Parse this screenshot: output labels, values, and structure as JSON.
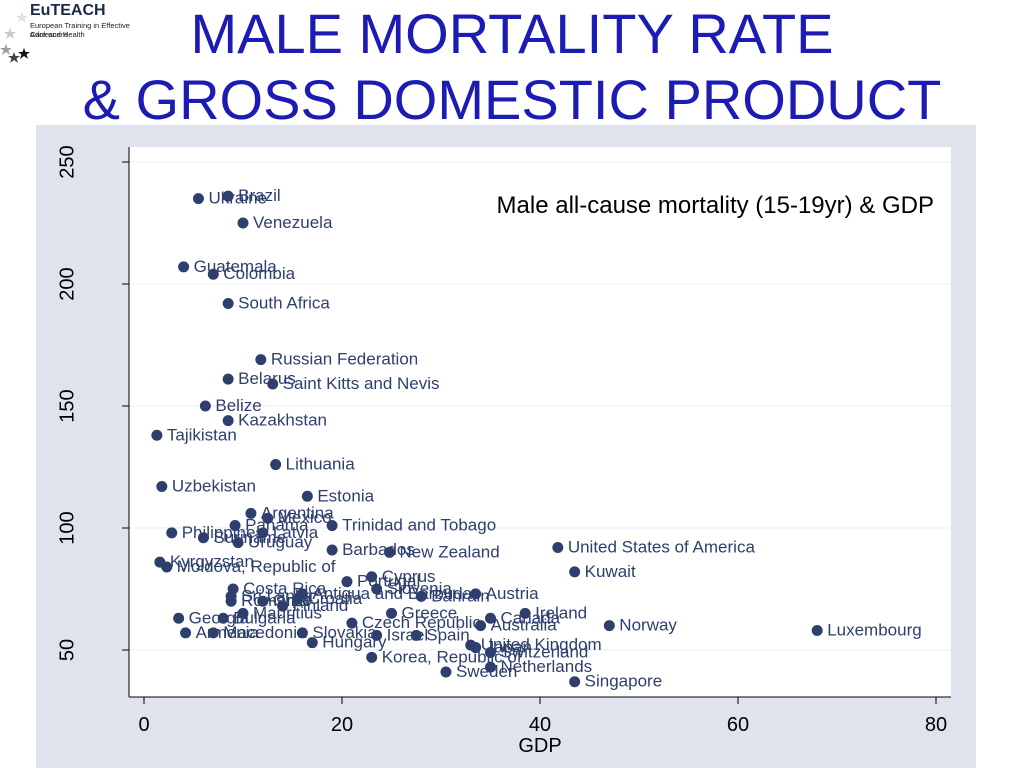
{
  "header": {
    "logo_name": "EuTEACH",
    "logo_line1": "European Training in Effective Adolescent",
    "logo_line2": "Care and Health",
    "title_line1": "MALE MORTALITY RATE",
    "title_line2": "& GROSS DOMESTIC PRODUCT"
  },
  "colors": {
    "title": "#1c1cb4",
    "marker": "#2e3f6e",
    "label": "#2e3f6e",
    "panel": "#dfe3ee",
    "plot": "#ffffff"
  },
  "chart_data": {
    "type": "scatter",
    "title": "Male all-cause mortality (15-19yr) & GDP",
    "xlabel": "GDP",
    "ylabel": "",
    "xlim": [
      0,
      80
    ],
    "ylim": [
      30,
      255
    ],
    "xticks": [
      0,
      20,
      40,
      60,
      80
    ],
    "yticks": [
      50,
      100,
      150,
      200,
      250
    ],
    "points": [
      {
        "label": "Brazil",
        "x": 8.5,
        "y": 236
      },
      {
        "label": "Ukraine",
        "x": 5.5,
        "y": 235
      },
      {
        "label": "Venezuela",
        "x": 10,
        "y": 225
      },
      {
        "label": "Guatemala",
        "x": 4,
        "y": 207
      },
      {
        "label": "Colombia",
        "x": 7,
        "y": 204
      },
      {
        "label": "South Africa",
        "x": 8.5,
        "y": 192
      },
      {
        "label": "Russian Federation",
        "x": 11.8,
        "y": 169
      },
      {
        "label": "Belarus",
        "x": 8.5,
        "y": 161
      },
      {
        "label": "Saint Kitts and Nevis",
        "x": 13,
        "y": 159
      },
      {
        "label": "Belize",
        "x": 6.2,
        "y": 150
      },
      {
        "label": "Kazakhstan",
        "x": 8.5,
        "y": 144
      },
      {
        "label": "Tajikistan",
        "x": 1.3,
        "y": 138
      },
      {
        "label": "Lithuania",
        "x": 13.3,
        "y": 126
      },
      {
        "label": "Uzbekistan",
        "x": 1.8,
        "y": 117
      },
      {
        "label": "Estonia",
        "x": 16.5,
        "y": 113
      },
      {
        "label": "Argentina",
        "x": 10.8,
        "y": 106
      },
      {
        "label": "Mexico",
        "x": 12.5,
        "y": 104
      },
      {
        "label": "Panama",
        "x": 9.2,
        "y": 101
      },
      {
        "label": "Trinidad and Tobago",
        "x": 19,
        "y": 101
      },
      {
        "label": "Philippines",
        "x": 2.8,
        "y": 98
      },
      {
        "label": "Latvia",
        "x": 12,
        "y": 98
      },
      {
        "label": "Suriname",
        "x": 6,
        "y": 96
      },
      {
        "label": "Uruguay",
        "x": 9.5,
        "y": 94
      },
      {
        "label": "United States of America",
        "x": 41.8,
        "y": 92
      },
      {
        "label": "Barbados",
        "x": 19,
        "y": 91
      },
      {
        "label": "New Zealand",
        "x": 24.8,
        "y": 90
      },
      {
        "label": "Kyrgyzstan",
        "x": 1.6,
        "y": 86
      },
      {
        "label": "Moldova, Republic of",
        "x": 2.3,
        "y": 84
      },
      {
        "label": "Kuwait",
        "x": 43.5,
        "y": 82
      },
      {
        "label": "Cyprus",
        "x": 23,
        "y": 80
      },
      {
        "label": "Portugal",
        "x": 20.5,
        "y": 78
      },
      {
        "label": "Costa Rica",
        "x": 9,
        "y": 75
      },
      {
        "label": "Slovenia",
        "x": 23.5,
        "y": 75
      },
      {
        "label": "Antigua and Barbuda",
        "x": 16,
        "y": 73
      },
      {
        "label": "Austria",
        "x": 33.5,
        "y": 73
      },
      {
        "label": "Bahrain",
        "x": 28,
        "y": 72
      },
      {
        "label": "Sri Lanka",
        "x": 8.8,
        "y": 72
      },
      {
        "label": "Croatia",
        "x": 15.5,
        "y": 71
      },
      {
        "label": "Romania",
        "x": 8.8,
        "y": 70
      },
      {
        "label": "Chile",
        "x": 12,
        "y": 70
      },
      {
        "label": "Finland",
        "x": 14,
        "y": 68
      },
      {
        "label": "Mauritius",
        "x": 10,
        "y": 65
      },
      {
        "label": "Ireland",
        "x": 38.5,
        "y": 65
      },
      {
        "label": "Greece",
        "x": 25,
        "y": 65
      },
      {
        "label": "Canada",
        "x": 35,
        "y": 63
      },
      {
        "label": "Georgia",
        "x": 3.5,
        "y": 63
      },
      {
        "label": "Bulgaria",
        "x": 8,
        "y": 63
      },
      {
        "label": "Czech Republic",
        "x": 21,
        "y": 61
      },
      {
        "label": "Norway",
        "x": 47,
        "y": 60
      },
      {
        "label": "Armenia",
        "x": 4.2,
        "y": 57
      },
      {
        "label": "Macedonia",
        "x": 7,
        "y": 57
      },
      {
        "label": "Slovakia",
        "x": 16,
        "y": 57
      },
      {
        "label": "Israel",
        "x": 23.5,
        "y": 56
      },
      {
        "label": "Spain",
        "x": 27.5,
        "y": 56
      },
      {
        "label": "Hungary",
        "x": 17,
        "y": 53
      },
      {
        "label": "Australia",
        "x": 34,
        "y": 60
      },
      {
        "label": "Luxembourg",
        "x": 68,
        "y": 58
      },
      {
        "label": "United Kingdom",
        "x": 33,
        "y": 52
      },
      {
        "label": "Japan",
        "x": 33.5,
        "y": 51
      },
      {
        "label": "Switzerland",
        "x": 35,
        "y": 49
      },
      {
        "label": "Korea, Republic of",
        "x": 23,
        "y": 47
      },
      {
        "label": "Netherlands",
        "x": 35,
        "y": 43
      },
      {
        "label": "Sweden",
        "x": 30.5,
        "y": 41
      },
      {
        "label": "Singapore",
        "x": 43.5,
        "y": 37
      }
    ]
  }
}
